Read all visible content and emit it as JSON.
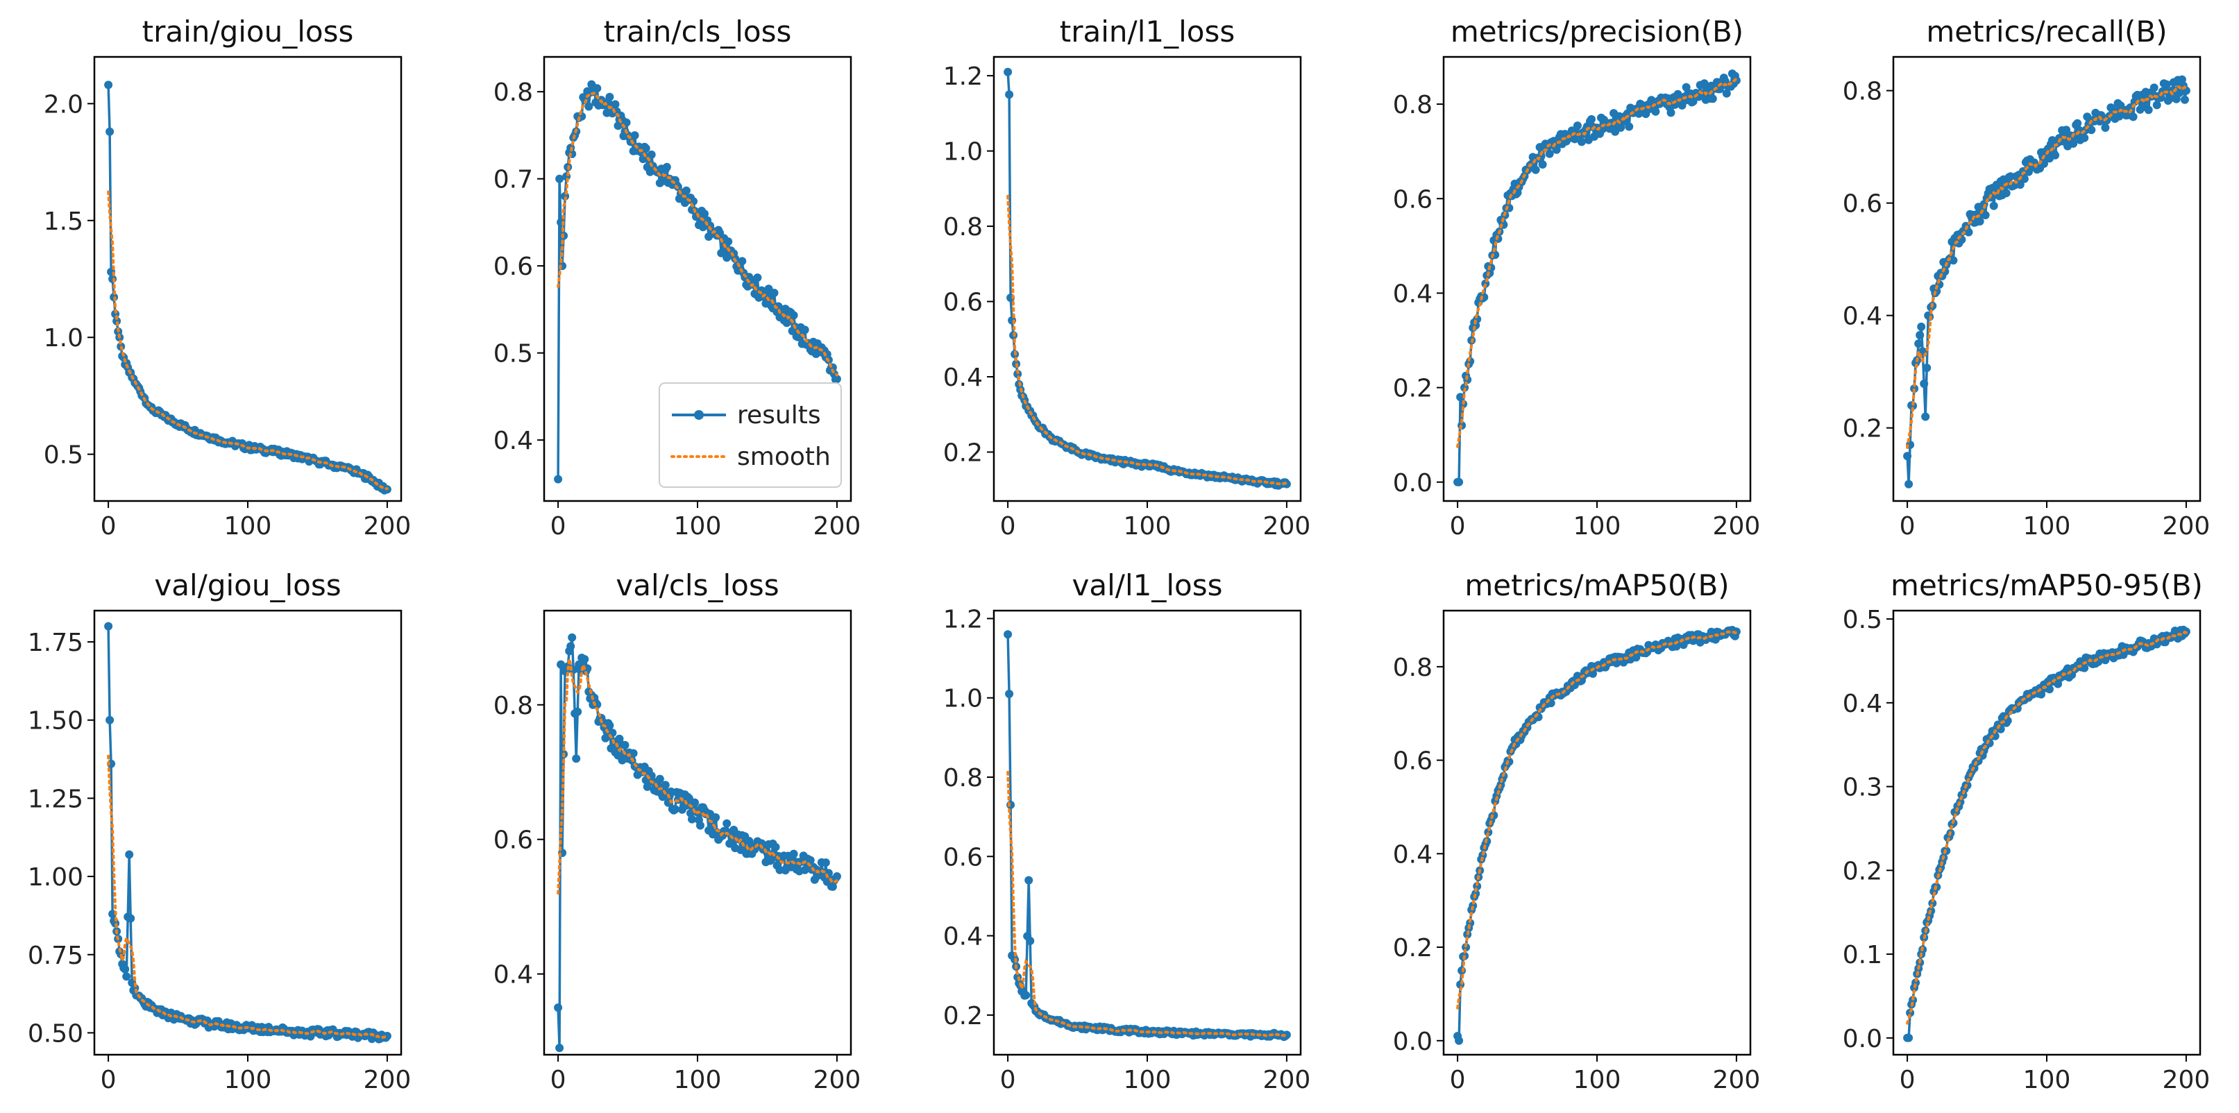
{
  "figure": {
    "legend": {
      "results_label": "results",
      "smooth_label": "smooth"
    },
    "colors": {
      "results": "#1f77b4",
      "smooth": "#ff7f0e",
      "axes": "#000000"
    }
  },
  "chart_data": [
    {
      "type": "line",
      "title": "train/giou_loss",
      "xlim": [
        -10,
        210
      ],
      "ylim": [
        0.3,
        2.2
      ],
      "xticks": [
        0,
        100,
        200
      ],
      "xtick_labels": [
        "0",
        "100",
        "200"
      ],
      "yticks": [
        0.5,
        1.0,
        1.5,
        2.0
      ],
      "ytick_labels": [
        "0.5",
        "1.0",
        "1.5",
        "2.0"
      ],
      "points": [
        [
          0,
          2.08
        ],
        [
          1,
          1.88
        ],
        [
          2,
          1.28
        ],
        [
          3,
          1.25
        ],
        [
          5,
          1.1
        ],
        [
          8,
          1.0
        ],
        [
          10,
          0.92
        ],
        [
          15,
          0.85
        ],
        [
          20,
          0.8
        ],
        [
          30,
          0.7
        ],
        [
          40,
          0.66
        ],
        [
          50,
          0.63
        ],
        [
          60,
          0.6
        ],
        [
          70,
          0.58
        ],
        [
          80,
          0.56
        ],
        [
          90,
          0.545
        ],
        [
          100,
          0.53
        ],
        [
          110,
          0.52
        ],
        [
          120,
          0.51
        ],
        [
          130,
          0.5
        ],
        [
          140,
          0.485
        ],
        [
          150,
          0.47
        ],
        [
          160,
          0.455
        ],
        [
          170,
          0.44
        ],
        [
          180,
          0.42
        ],
        [
          190,
          0.39
        ],
        [
          195,
          0.36
        ],
        [
          200,
          0.35
        ]
      ],
      "noise": 0.012,
      "legend": false
    },
    {
      "type": "line",
      "title": "train/cls_loss",
      "xlim": [
        -10,
        210
      ],
      "ylim": [
        0.33,
        0.84
      ],
      "xticks": [
        0,
        100,
        200
      ],
      "xtick_labels": [
        "0",
        "100",
        "200"
      ],
      "yticks": [
        0.4,
        0.5,
        0.6,
        0.7,
        0.8
      ],
      "ytick_labels": [
        "0.4",
        "0.5",
        "0.6",
        "0.7",
        "0.8"
      ],
      "points": [
        [
          0,
          0.355
        ],
        [
          1,
          0.7
        ],
        [
          3,
          0.6
        ],
        [
          5,
          0.68
        ],
        [
          8,
          0.73
        ],
        [
          12,
          0.75
        ],
        [
          15,
          0.77
        ],
        [
          20,
          0.79
        ],
        [
          25,
          0.8
        ],
        [
          30,
          0.79
        ],
        [
          40,
          0.78
        ],
        [
          50,
          0.75
        ],
        [
          60,
          0.73
        ],
        [
          70,
          0.71
        ],
        [
          80,
          0.7
        ],
        [
          90,
          0.68
        ],
        [
          100,
          0.66
        ],
        [
          110,
          0.64
        ],
        [
          120,
          0.62
        ],
        [
          130,
          0.6
        ],
        [
          140,
          0.58
        ],
        [
          150,
          0.565
        ],
        [
          160,
          0.55
        ],
        [
          170,
          0.53
        ],
        [
          180,
          0.51
        ],
        [
          190,
          0.5
        ],
        [
          195,
          0.48
        ],
        [
          200,
          0.47
        ]
      ],
      "noise": 0.012,
      "legend": true
    },
    {
      "type": "line",
      "title": "train/l1_loss",
      "xlim": [
        -10,
        210
      ],
      "ylim": [
        0.07,
        1.25
      ],
      "xticks": [
        0,
        100,
        200
      ],
      "xtick_labels": [
        "0",
        "100",
        "200"
      ],
      "yticks": [
        0.2,
        0.4,
        0.6,
        0.8,
        1.0,
        1.2
      ],
      "ytick_labels": [
        "0.2",
        "0.4",
        "0.6",
        "0.8",
        "1.0",
        "1.2"
      ],
      "points": [
        [
          0,
          1.21
        ],
        [
          1,
          1.15
        ],
        [
          2,
          0.61
        ],
        [
          3,
          0.55
        ],
        [
          5,
          0.46
        ],
        [
          8,
          0.38
        ],
        [
          10,
          0.35
        ],
        [
          15,
          0.31
        ],
        [
          20,
          0.28
        ],
        [
          30,
          0.24
        ],
        [
          40,
          0.22
        ],
        [
          50,
          0.2
        ],
        [
          60,
          0.19
        ],
        [
          70,
          0.18
        ],
        [
          80,
          0.175
        ],
        [
          90,
          0.17
        ],
        [
          100,
          0.165
        ],
        [
          110,
          0.16
        ],
        [
          120,
          0.15
        ],
        [
          130,
          0.145
        ],
        [
          140,
          0.14
        ],
        [
          150,
          0.135
        ],
        [
          160,
          0.13
        ],
        [
          170,
          0.125
        ],
        [
          180,
          0.12
        ],
        [
          190,
          0.118
        ],
        [
          200,
          0.115
        ]
      ],
      "noise": 0.006,
      "legend": false
    },
    {
      "type": "line",
      "title": "metrics/precision(B)",
      "xlim": [
        -10,
        210
      ],
      "ylim": [
        -0.04,
        0.9
      ],
      "xticks": [
        0,
        100,
        200
      ],
      "xtick_labels": [
        "0",
        "100",
        "200"
      ],
      "yticks": [
        0.0,
        0.2,
        0.4,
        0.6,
        0.8
      ],
      "ytick_labels": [
        "0.0",
        "0.2",
        "0.4",
        "0.6",
        "0.8"
      ],
      "points": [
        [
          0,
          0.0
        ],
        [
          1,
          0.0
        ],
        [
          2,
          0.18
        ],
        [
          3,
          0.12
        ],
        [
          5,
          0.2
        ],
        [
          8,
          0.25
        ],
        [
          10,
          0.3
        ],
        [
          15,
          0.38
        ],
        [
          20,
          0.42
        ],
        [
          25,
          0.48
        ],
        [
          30,
          0.53
        ],
        [
          35,
          0.58
        ],
        [
          40,
          0.62
        ],
        [
          50,
          0.66
        ],
        [
          60,
          0.69
        ],
        [
          70,
          0.71
        ],
        [
          80,
          0.73
        ],
        [
          90,
          0.74
        ],
        [
          100,
          0.75
        ],
        [
          110,
          0.76
        ],
        [
          120,
          0.77
        ],
        [
          130,
          0.78
        ],
        [
          140,
          0.79
        ],
        [
          150,
          0.8
        ],
        [
          160,
          0.81
        ],
        [
          170,
          0.82
        ],
        [
          180,
          0.83
        ],
        [
          190,
          0.84
        ],
        [
          200,
          0.85
        ]
      ],
      "noise": 0.022,
      "legend": false
    },
    {
      "type": "line",
      "title": "metrics/recall(B)",
      "xlim": [
        -10,
        210
      ],
      "ylim": [
        0.07,
        0.86
      ],
      "xticks": [
        0,
        100,
        200
      ],
      "xtick_labels": [
        "0",
        "100",
        "200"
      ],
      "yticks": [
        0.2,
        0.4,
        0.6,
        0.8
      ],
      "ytick_labels": [
        "0.2",
        "0.4",
        "0.6",
        "0.8"
      ],
      "points": [
        [
          0,
          0.15
        ],
        [
          1,
          0.1
        ],
        [
          3,
          0.24
        ],
        [
          5,
          0.27
        ],
        [
          8,
          0.35
        ],
        [
          10,
          0.38
        ],
        [
          13,
          0.22
        ],
        [
          15,
          0.4
        ],
        [
          20,
          0.44
        ],
        [
          25,
          0.47
        ],
        [
          30,
          0.5
        ],
        [
          35,
          0.53
        ],
        [
          40,
          0.55
        ],
        [
          50,
          0.58
        ],
        [
          60,
          0.61
        ],
        [
          70,
          0.63
        ],
        [
          80,
          0.65
        ],
        [
          90,
          0.67
        ],
        [
          100,
          0.69
        ],
        [
          110,
          0.71
        ],
        [
          120,
          0.72
        ],
        [
          130,
          0.74
        ],
        [
          140,
          0.75
        ],
        [
          150,
          0.76
        ],
        [
          160,
          0.77
        ],
        [
          170,
          0.78
        ],
        [
          180,
          0.79
        ],
        [
          190,
          0.8
        ],
        [
          200,
          0.8
        ]
      ],
      "noise": 0.02,
      "legend": false
    },
    {
      "type": "line",
      "title": "val/giou_loss",
      "xlim": [
        -10,
        210
      ],
      "ylim": [
        0.43,
        1.85
      ],
      "xticks": [
        0,
        100,
        200
      ],
      "xtick_labels": [
        "0",
        "100",
        "200"
      ],
      "yticks": [
        0.5,
        0.75,
        1.0,
        1.25,
        1.5,
        1.75
      ],
      "ytick_labels": [
        "0.50",
        "0.75",
        "1.00",
        "1.25",
        "1.50",
        "1.75"
      ],
      "points": [
        [
          0,
          1.8
        ],
        [
          1,
          1.5
        ],
        [
          2,
          1.36
        ],
        [
          3,
          0.88
        ],
        [
          5,
          0.85
        ],
        [
          8,
          0.76
        ],
        [
          10,
          0.72
        ],
        [
          13,
          0.68
        ],
        [
          15,
          1.07
        ],
        [
          17,
          0.66
        ],
        [
          20,
          0.62
        ],
        [
          25,
          0.6
        ],
        [
          30,
          0.58
        ],
        [
          40,
          0.56
        ],
        [
          50,
          0.55
        ],
        [
          60,
          0.54
        ],
        [
          70,
          0.53
        ],
        [
          80,
          0.525
        ],
        [
          90,
          0.52
        ],
        [
          100,
          0.515
        ],
        [
          120,
          0.51
        ],
        [
          140,
          0.5
        ],
        [
          160,
          0.5
        ],
        [
          180,
          0.495
        ],
        [
          200,
          0.49
        ]
      ],
      "noise": 0.012,
      "legend": false
    },
    {
      "type": "line",
      "title": "val/cls_loss",
      "xlim": [
        -10,
        210
      ],
      "ylim": [
        0.28,
        0.94
      ],
      "xticks": [
        0,
        100,
        200
      ],
      "xtick_labels": [
        "0",
        "100",
        "200"
      ],
      "yticks": [
        0.4,
        0.6,
        0.8
      ],
      "ytick_labels": [
        "0.4",
        "0.6",
        "0.8"
      ],
      "points": [
        [
          0,
          0.35
        ],
        [
          1,
          0.29
        ],
        [
          2,
          0.86
        ],
        [
          3,
          0.58
        ],
        [
          5,
          0.85
        ],
        [
          8,
          0.88
        ],
        [
          10,
          0.9
        ],
        [
          13,
          0.72
        ],
        [
          15,
          0.86
        ],
        [
          20,
          0.85
        ],
        [
          25,
          0.8
        ],
        [
          30,
          0.78
        ],
        [
          35,
          0.76
        ],
        [
          40,
          0.74
        ],
        [
          50,
          0.72
        ],
        [
          60,
          0.7
        ],
        [
          70,
          0.68
        ],
        [
          80,
          0.665
        ],
        [
          90,
          0.65
        ],
        [
          100,
          0.64
        ],
        [
          110,
          0.625
        ],
        [
          120,
          0.61
        ],
        [
          130,
          0.6
        ],
        [
          140,
          0.59
        ],
        [
          150,
          0.58
        ],
        [
          160,
          0.57
        ],
        [
          170,
          0.565
        ],
        [
          180,
          0.56
        ],
        [
          190,
          0.55
        ],
        [
          200,
          0.545
        ]
      ],
      "noise": 0.018,
      "legend": false
    },
    {
      "type": "line",
      "title": "val/l1_loss",
      "xlim": [
        -10,
        210
      ],
      "ylim": [
        0.1,
        1.22
      ],
      "xticks": [
        0,
        100,
        200
      ],
      "xtick_labels": [
        "0",
        "100",
        "200"
      ],
      "yticks": [
        0.2,
        0.4,
        0.6,
        0.8,
        1.0,
        1.2
      ],
      "ytick_labels": [
        "0.2",
        "0.4",
        "0.6",
        "0.8",
        "1.0",
        "1.2"
      ],
      "points": [
        [
          0,
          1.16
        ],
        [
          1,
          1.01
        ],
        [
          2,
          0.73
        ],
        [
          3,
          0.35
        ],
        [
          5,
          0.34
        ],
        [
          8,
          0.28
        ],
        [
          10,
          0.26
        ],
        [
          13,
          0.25
        ],
        [
          15,
          0.54
        ],
        [
          17,
          0.23
        ],
        [
          20,
          0.21
        ],
        [
          25,
          0.2
        ],
        [
          30,
          0.19
        ],
        [
          40,
          0.18
        ],
        [
          50,
          0.17
        ],
        [
          60,
          0.168
        ],
        [
          70,
          0.165
        ],
        [
          80,
          0.162
        ],
        [
          90,
          0.16
        ],
        [
          100,
          0.158
        ],
        [
          120,
          0.155
        ],
        [
          140,
          0.153
        ],
        [
          160,
          0.152
        ],
        [
          180,
          0.15
        ],
        [
          200,
          0.15
        ]
      ],
      "noise": 0.005,
      "legend": false
    },
    {
      "type": "line",
      "title": "metrics/mAP50(B)",
      "xlim": [
        -10,
        210
      ],
      "ylim": [
        -0.03,
        0.92
      ],
      "xticks": [
        0,
        100,
        200
      ],
      "xtick_labels": [
        "0",
        "100",
        "200"
      ],
      "yticks": [
        0.0,
        0.2,
        0.4,
        0.6,
        0.8
      ],
      "ytick_labels": [
        "0.0",
        "0.2",
        "0.4",
        "0.6",
        "0.8"
      ],
      "points": [
        [
          0,
          0.01
        ],
        [
          1,
          0.0
        ],
        [
          2,
          0.12
        ],
        [
          4,
          0.18
        ],
        [
          6,
          0.2
        ],
        [
          10,
          0.28
        ],
        [
          15,
          0.35
        ],
        [
          20,
          0.42
        ],
        [
          25,
          0.48
        ],
        [
          30,
          0.54
        ],
        [
          35,
          0.59
        ],
        [
          40,
          0.63
        ],
        [
          50,
          0.67
        ],
        [
          60,
          0.71
        ],
        [
          70,
          0.74
        ],
        [
          80,
          0.76
        ],
        [
          90,
          0.78
        ],
        [
          100,
          0.8
        ],
        [
          110,
          0.81
        ],
        [
          120,
          0.82
        ],
        [
          130,
          0.83
        ],
        [
          140,
          0.84
        ],
        [
          150,
          0.85
        ],
        [
          160,
          0.855
        ],
        [
          170,
          0.86
        ],
        [
          180,
          0.865
        ],
        [
          190,
          0.87
        ],
        [
          200,
          0.875
        ]
      ],
      "noise": 0.01,
      "legend": false
    },
    {
      "type": "line",
      "title": "metrics/mAP50-95(B)",
      "xlim": [
        -10,
        210
      ],
      "ylim": [
        -0.02,
        0.51
      ],
      "xticks": [
        0,
        100,
        200
      ],
      "xtick_labels": [
        "0",
        "100",
        "200"
      ],
      "yticks": [
        0.0,
        0.1,
        0.2,
        0.3,
        0.4,
        0.5
      ],
      "ytick_labels": [
        "0.0",
        "0.1",
        "0.2",
        "0.3",
        "0.4",
        "0.5"
      ],
      "points": [
        [
          0,
          0.0
        ],
        [
          1,
          0.0
        ],
        [
          2,
          0.03
        ],
        [
          5,
          0.06
        ],
        [
          10,
          0.1
        ],
        [
          15,
          0.14
        ],
        [
          20,
          0.18
        ],
        [
          25,
          0.21
        ],
        [
          30,
          0.24
        ],
        [
          35,
          0.27
        ],
        [
          40,
          0.29
        ],
        [
          50,
          0.33
        ],
        [
          60,
          0.36
        ],
        [
          70,
          0.38
        ],
        [
          80,
          0.4
        ],
        [
          90,
          0.41
        ],
        [
          100,
          0.42
        ],
        [
          110,
          0.43
        ],
        [
          120,
          0.44
        ],
        [
          130,
          0.45
        ],
        [
          140,
          0.455
        ],
        [
          150,
          0.46
        ],
        [
          160,
          0.465
        ],
        [
          170,
          0.47
        ],
        [
          180,
          0.475
        ],
        [
          190,
          0.48
        ],
        [
          200,
          0.485
        ]
      ],
      "noise": 0.006,
      "legend": false
    }
  ]
}
